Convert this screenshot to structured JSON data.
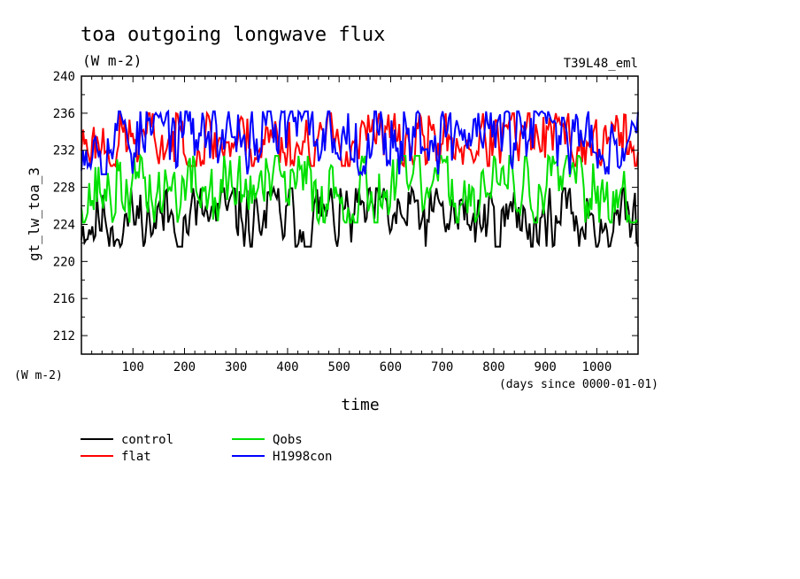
{
  "chart_data": {
    "type": "line",
    "title": "toa outgoing longwave flux",
    "units": "(W m-2)",
    "run_label": "T39L48_eml",
    "ylabel": "gt_lw_toa_3",
    "yunits": "(W m-2)",
    "xlabel": "time",
    "xunits": "(days since 0000-01-01)",
    "xlim": [
      0,
      1080
    ],
    "ylim": [
      210,
      240
    ],
    "x_ticks": [
      100,
      200,
      300,
      400,
      500,
      600,
      700,
      800,
      900,
      1000
    ],
    "y_ticks": [
      212,
      216,
      220,
      224,
      228,
      232,
      236,
      240
    ],
    "series": [
      {
        "name": "control",
        "color": "#000000",
        "mean": 224.6,
        "min": 221.6,
        "max": 227.9,
        "n": 360,
        "seed": 11
      },
      {
        "name": "flat",
        "color": "#ff0000",
        "mean": 233.0,
        "min": 230.3,
        "max": 236.0,
        "n": 360,
        "seed": 23
      },
      {
        "name": "Qobs",
        "color": "#00e000",
        "mean": 227.7,
        "min": 224.2,
        "max": 231.4,
        "n": 360,
        "seed": 37
      },
      {
        "name": "H1998con",
        "color": "#0000ff",
        "mean": 233.9,
        "min": 229.4,
        "max": 236.2,
        "n": 360,
        "seed": 53
      }
    ]
  }
}
